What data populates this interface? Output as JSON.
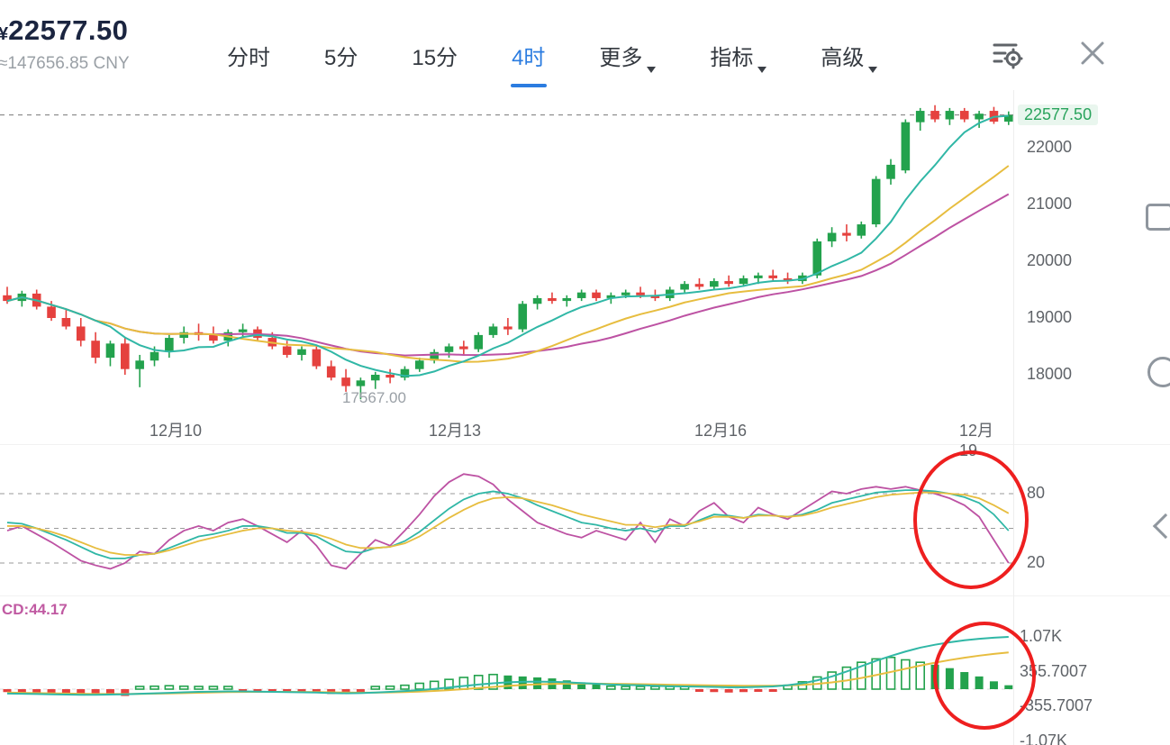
{
  "header": {
    "price_prefix": "¥",
    "price": "22577.50",
    "price_cny": "≈147656.85 CNY",
    "tabs": [
      {
        "id": "timeshare",
        "label": "分时",
        "active": false,
        "dropdown": false
      },
      {
        "id": "5min",
        "label": "5分",
        "active": false,
        "dropdown": false
      },
      {
        "id": "15min",
        "label": "15分",
        "active": false,
        "dropdown": false
      },
      {
        "id": "4hour",
        "label": "4时",
        "active": true,
        "dropdown": false
      },
      {
        "id": "more",
        "label": "更多",
        "active": false,
        "dropdown": true
      },
      {
        "id": "indicators",
        "label": "指标",
        "active": false,
        "dropdown": true
      },
      {
        "id": "advanced",
        "label": "高级",
        "active": false,
        "dropdown": true
      }
    ],
    "icons": {
      "settings": "indicator-settings-icon",
      "close": "close-icon"
    }
  },
  "main_chart": {
    "current_price_label": "22577.50",
    "low_label": "17567.00"
  },
  "macd_panel": {
    "label": "CD:44.17"
  },
  "colors": {
    "up": "#23a24d",
    "down": "#e5413e",
    "accent_blue": "#2b7ce0",
    "teal": "#30b7a6",
    "yellow": "#e7bd3f",
    "magenta": "#bd52a3",
    "annotation_red": "#ee1f1f"
  },
  "chart_data": {
    "type": "candlestick",
    "title": "",
    "timeframe": "4h",
    "price_axis": {
      "labels": [
        22000,
        21000,
        20000,
        19000,
        18000
      ],
      "min": 17567,
      "max": 22750
    },
    "x_axis_labels": [
      {
        "label": "12月10",
        "x": 195
      },
      {
        "label": "12月13",
        "x": 505
      },
      {
        "label": "12月16",
        "x": 800
      },
      {
        "label": "12月19",
        "x": 1085
      }
    ],
    "current_price": 22577.5,
    "low_marker": 17567.0,
    "ma_periods": {
      "teal": 7,
      "yellow": 15,
      "magenta": 20
    },
    "candles": [
      [
        19400,
        19550,
        19250,
        19300
      ],
      [
        19300,
        19480,
        19200,
        19430
      ],
      [
        19430,
        19500,
        19150,
        19200
      ],
      [
        19200,
        19300,
        18950,
        19000
      ],
      [
        19000,
        19150,
        18800,
        18850
      ],
      [
        18850,
        19000,
        18500,
        18600
      ],
      [
        18600,
        18750,
        18200,
        18300
      ],
      [
        18300,
        18600,
        18150,
        18550
      ],
      [
        18550,
        18650,
        18000,
        18100
      ],
      [
        18100,
        18350,
        17780,
        18250
      ],
      [
        18250,
        18500,
        18150,
        18400
      ],
      [
        18400,
        18700,
        18300,
        18650
      ],
      [
        18650,
        18850,
        18550,
        18750
      ],
      [
        18750,
        18900,
        18600,
        18700
      ],
      [
        18700,
        18850,
        18550,
        18600
      ],
      [
        18600,
        18800,
        18500,
        18750
      ],
      [
        18750,
        18900,
        18650,
        18800
      ],
      [
        18800,
        18850,
        18600,
        18650
      ],
      [
        18650,
        18750,
        18450,
        18500
      ],
      [
        18500,
        18600,
        18300,
        18350
      ],
      [
        18350,
        18500,
        18250,
        18450
      ],
      [
        18450,
        18500,
        18100,
        18150
      ],
      [
        18150,
        18250,
        17900,
        17950
      ],
      [
        17950,
        18100,
        17700,
        17800
      ],
      [
        17800,
        17950,
        17567,
        17900
      ],
      [
        17900,
        18050,
        17750,
        18000
      ],
      [
        18000,
        18100,
        17850,
        17950
      ],
      [
        17950,
        18150,
        17900,
        18100
      ],
      [
        18100,
        18300,
        18050,
        18250
      ],
      [
        18250,
        18450,
        18200,
        18400
      ],
      [
        18400,
        18550,
        18300,
        18500
      ],
      [
        18500,
        18600,
        18350,
        18450
      ],
      [
        18450,
        18750,
        18400,
        18700
      ],
      [
        18700,
        18900,
        18650,
        18850
      ],
      [
        18850,
        19000,
        18700,
        18800
      ],
      [
        18800,
        19300,
        18750,
        19250
      ],
      [
        19250,
        19400,
        19150,
        19350
      ],
      [
        19350,
        19450,
        19250,
        19300
      ],
      [
        19300,
        19400,
        19200,
        19350
      ],
      [
        19350,
        19500,
        19300,
        19450
      ],
      [
        19450,
        19500,
        19300,
        19350
      ],
      [
        19350,
        19450,
        19250,
        19400
      ],
      [
        19400,
        19500,
        19350,
        19450
      ],
      [
        19450,
        19550,
        19350,
        19400
      ],
      [
        19400,
        19500,
        19300,
        19350
      ],
      [
        19350,
        19550,
        19300,
        19500
      ],
      [
        19500,
        19650,
        19450,
        19600
      ],
      [
        19600,
        19700,
        19500,
        19550
      ],
      [
        19550,
        19700,
        19500,
        19650
      ],
      [
        19650,
        19750,
        19550,
        19600
      ],
      [
        19600,
        19750,
        19550,
        19700
      ],
      [
        19700,
        19800,
        19600,
        19750
      ],
      [
        19750,
        19850,
        19650,
        19700
      ],
      [
        19700,
        19800,
        19600,
        19650
      ],
      [
        19650,
        19800,
        19600,
        19750
      ],
      [
        19750,
        20400,
        19700,
        20350
      ],
      [
        20350,
        20600,
        20250,
        20500
      ],
      [
        20500,
        20650,
        20350,
        20450
      ],
      [
        20450,
        20700,
        20400,
        20650
      ],
      [
        20650,
        21500,
        20600,
        21450
      ],
      [
        21450,
        21800,
        21350,
        21700
      ],
      [
        21600,
        22500,
        21550,
        22450
      ],
      [
        22450,
        22700,
        22300,
        22650
      ],
      [
        22650,
        22750,
        22450,
        22500
      ],
      [
        22500,
        22700,
        22400,
        22650
      ],
      [
        22650,
        22700,
        22450,
        22500
      ],
      [
        22500,
        22650,
        22350,
        22600
      ],
      [
        22650,
        22720,
        22420,
        22460
      ],
      [
        22460,
        22640,
        22400,
        22577.5
      ]
    ],
    "oscillator": {
      "levels": [
        80,
        50,
        20
      ],
      "axis_ticks": [
        80,
        20
      ],
      "series": [
        {
          "name": "K",
          "color": "#bd52a3",
          "values": [
            48,
            52,
            45,
            38,
            30,
            22,
            18,
            15,
            20,
            30,
            28,
            40,
            48,
            52,
            48,
            55,
            58,
            52,
            45,
            38,
            48,
            35,
            18,
            15,
            28,
            40,
            35,
            48,
            62,
            78,
            90,
            97,
            95,
            88,
            75,
            65,
            55,
            50,
            45,
            42,
            48,
            44,
            40,
            55,
            38,
            58,
            52,
            65,
            72,
            60,
            55,
            68,
            62,
            58,
            66,
            74,
            82,
            80,
            84,
            86,
            84,
            86,
            83,
            80,
            76,
            70,
            60,
            40,
            20
          ]
        },
        {
          "name": "D",
          "color": "#30b7a6",
          "values": [
            55,
            54,
            50,
            45,
            40,
            34,
            28,
            24,
            24,
            27,
            28,
            33,
            38,
            43,
            45,
            48,
            52,
            52,
            50,
            46,
            46,
            43,
            36,
            30,
            29,
            33,
            34,
            39,
            47,
            57,
            67,
            75,
            80,
            82,
            80,
            76,
            70,
            65,
            60,
            55,
            53,
            50,
            48,
            50,
            47,
            52,
            52,
            57,
            62,
            61,
            59,
            62,
            61,
            60,
            62,
            66,
            72,
            75,
            78,
            81,
            82,
            83,
            83,
            82,
            80,
            77,
            72,
            62,
            48
          ]
        },
        {
          "name": "J",
          "color": "#e7bd3f",
          "values": [
            52,
            52,
            50,
            47,
            43,
            38,
            33,
            29,
            27,
            27,
            28,
            31,
            35,
            39,
            42,
            45,
            48,
            50,
            50,
            48,
            47,
            45,
            41,
            36,
            33,
            33,
            34,
            37,
            43,
            51,
            59,
            66,
            72,
            76,
            77,
            76,
            73,
            70,
            66,
            62,
            59,
            56,
            53,
            53,
            51,
            53,
            53,
            56,
            60,
            60,
            59,
            61,
            61,
            60,
            61,
            64,
            68,
            71,
            74,
            77,
            79,
            80,
            81,
            81,
            80,
            79,
            76,
            70,
            63
          ]
        }
      ]
    },
    "macd": {
      "value_label": "CD:44.17",
      "axis_ticks": [
        {
          "label": "1.07K",
          "value": 1070
        },
        {
          "label": "355.7007",
          "value": 355.7
        },
        {
          "label": "-355.7007",
          "value": -355.7
        },
        {
          "label": "-1.07K",
          "value": -1070
        }
      ],
      "hist_values": [
        -60,
        -80,
        -70,
        -90,
        -110,
        -130,
        -120,
        -100,
        -140,
        40,
        60,
        70,
        60,
        50,
        40,
        30,
        -40,
        -60,
        -70,
        -50,
        -40,
        -80,
        -100,
        -90,
        -60,
        40,
        60,
        80,
        120,
        160,
        200,
        240,
        280,
        300,
        280,
        260,
        240,
        220,
        180,
        140,
        100,
        60,
        50,
        40,
        30,
        40,
        50,
        -40,
        -60,
        -70,
        -60,
        -50,
        -40,
        80,
        150,
        250,
        350,
        450,
        550,
        620,
        650,
        600,
        550,
        500,
        430,
        350,
        260,
        160,
        80
      ],
      "hist_styles": "rrrrrrrrrhhhhhhhrrrrrrrrrhhhhhhhhhssssssshhhhhhrrrrrrhhhhhhhhhhssssss",
      "dif": [
        -90,
        -95,
        -100,
        -105,
        -110,
        -115,
        -115,
        -110,
        -105,
        -95,
        -85,
        -75,
        -65,
        -55,
        -50,
        -45,
        -45,
        -50,
        -55,
        -60,
        -65,
        -70,
        -80,
        -85,
        -80,
        -70,
        -55,
        -40,
        -20,
        5,
        35,
        65,
        95,
        120,
        140,
        150,
        155,
        150,
        140,
        125,
        110,
        95,
        85,
        80,
        70,
        60,
        55,
        50,
        45,
        40,
        40,
        45,
        55,
        80,
        120,
        180,
        260,
        360,
        470,
        580,
        680,
        770,
        850,
        910,
        960,
        1000,
        1030,
        1055,
        1070
      ],
      "dea": [
        -70,
        -75,
        -80,
        -85,
        -90,
        -95,
        -100,
        -100,
        -100,
        -97,
        -92,
        -87,
        -80,
        -73,
        -67,
        -61,
        -57,
        -55,
        -55,
        -56,
        -58,
        -61,
        -65,
        -70,
        -72,
        -71,
        -67,
        -60,
        -50,
        -37,
        -20,
        0,
        22,
        45,
        67,
        85,
        98,
        107,
        112,
        113,
        112,
        109,
        105,
        101,
        96,
        91,
        86,
        81,
        77,
        73,
        70,
        69,
        70,
        76,
        88,
        108,
        138,
        178,
        228,
        288,
        352,
        418,
        482,
        542,
        596,
        644,
        686,
        722,
        752
      ]
    }
  }
}
